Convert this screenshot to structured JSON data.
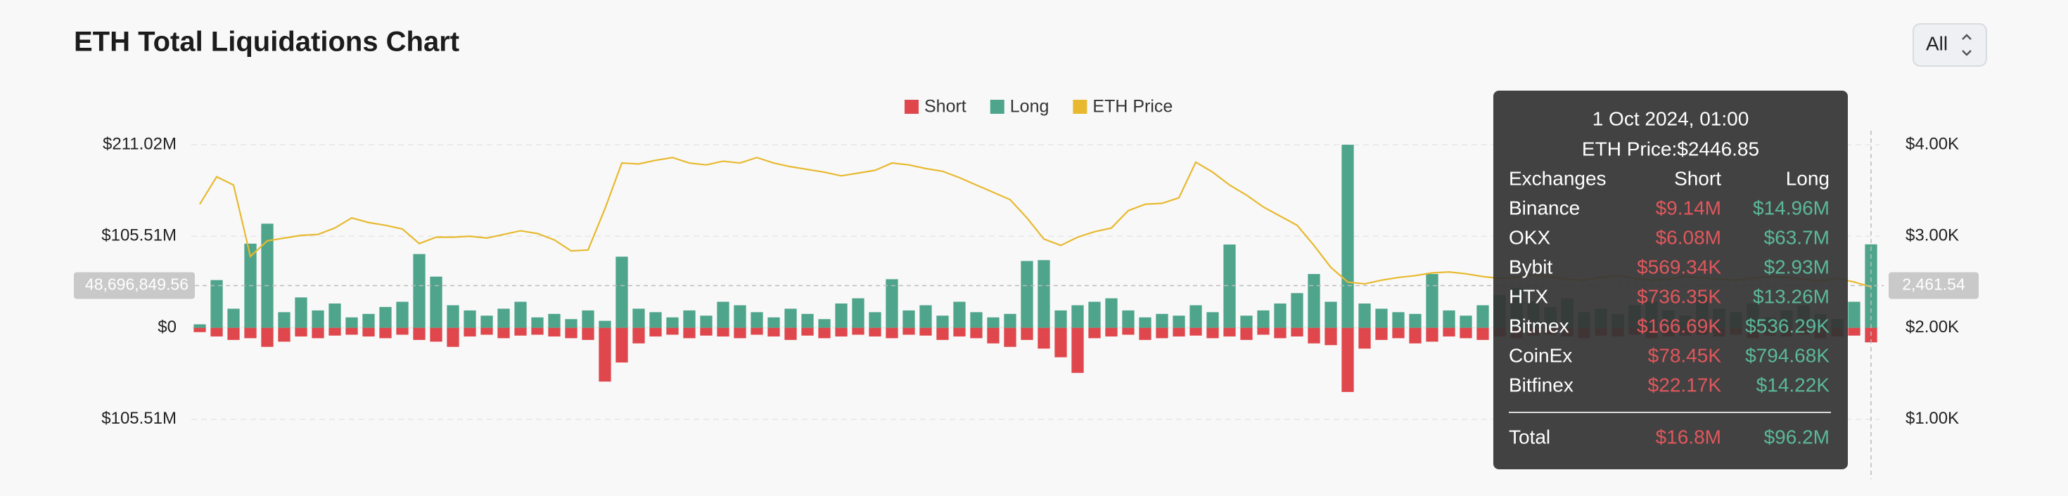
{
  "chart_data": {
    "type": "bar",
    "title": "ETH Total Liquidations Chart",
    "range_button": "All",
    "series": [
      {
        "name": "Short",
        "color": "#e0474c",
        "values": [
          -5,
          -10,
          -14,
          -12,
          -22,
          -16,
          -10,
          -12,
          -9,
          -8,
          -10,
          -12,
          -8,
          -14,
          -16,
          -22,
          -10,
          -8,
          -12,
          -9,
          -8,
          -10,
          -12,
          -14,
          -62,
          -40,
          -18,
          -10,
          -8,
          -12,
          -9,
          -10,
          -12,
          -8,
          -10,
          -14,
          -9,
          -12,
          -10,
          -8,
          -10,
          -12,
          -8,
          -9,
          -14,
          -10,
          -12,
          -18,
          -22,
          -14,
          -24,
          -34,
          -52,
          -12,
          -10,
          -8,
          -14,
          -12,
          -10,
          -9,
          -12,
          -10,
          -14,
          -8,
          -12,
          -10,
          -18,
          -20,
          -74,
          -24,
          -14,
          -12,
          -18,
          -16,
          -10,
          -12,
          -14,
          -10,
          -12,
          -9,
          -8,
          -10,
          -12,
          -9,
          -10,
          -8,
          -12,
          -10,
          -9,
          -8,
          -10,
          -8,
          -12,
          -9,
          -10,
          -8,
          -12,
          -10,
          -9,
          -16.8
        ]
      },
      {
        "name": "Long",
        "color": "#4fa58c",
        "values": [
          4,
          55,
          22,
          97,
          120,
          18,
          35,
          20,
          28,
          12,
          16,
          24,
          30,
          85,
          59,
          26,
          20,
          14,
          22,
          30,
          12,
          16,
          10,
          20,
          8,
          82,
          22,
          18,
          12,
          20,
          14,
          30,
          26,
          18,
          12,
          22,
          16,
          10,
          28,
          34,
          18,
          56,
          20,
          26,
          14,
          30,
          18,
          12,
          16,
          77,
          78,
          20,
          26,
          30,
          34,
          20,
          12,
          16,
          14,
          26,
          18,
          96,
          14,
          20,
          28,
          40,
          62,
          30,
          211,
          28,
          22,
          18,
          16,
          62,
          20,
          14,
          26,
          38,
          46,
          30,
          24,
          34,
          18,
          22,
          16,
          26,
          30,
          20,
          14,
          36,
          22,
          18,
          28,
          12,
          20,
          26,
          16,
          10,
          30,
          96.2
        ]
      },
      {
        "name": "ETH Price",
        "color": "#e8b92f",
        "axis": "y2",
        "values": [
          3350,
          3650,
          3560,
          2780,
          2950,
          2980,
          3010,
          3020,
          3090,
          3200,
          3150,
          3120,
          3080,
          2920,
          2990,
          2990,
          3000,
          2980,
          3020,
          3060,
          3030,
          2960,
          2840,
          2850,
          3300,
          3800,
          3790,
          3830,
          3860,
          3800,
          3780,
          3820,
          3800,
          3860,
          3800,
          3760,
          3730,
          3700,
          3660,
          3690,
          3720,
          3800,
          3780,
          3740,
          3710,
          3640,
          3560,
          3480,
          3400,
          3200,
          2970,
          2900,
          2990,
          3050,
          3090,
          3280,
          3350,
          3360,
          3420,
          3810,
          3700,
          3560,
          3450,
          3320,
          3220,
          3120,
          2900,
          2660,
          2500,
          2480,
          2520,
          2550,
          2570,
          2600,
          2610,
          2590,
          2560,
          2540,
          2550,
          2580,
          2560,
          2530,
          2520,
          2550,
          2570,
          2540,
          2520,
          2530,
          2560,
          2550,
          2530,
          2520,
          2540,
          2560,
          2550,
          2530,
          2510,
          2540,
          2500,
          2446.85
        ]
      }
    ],
    "ylim": [
      -158.265,
      211.02
    ],
    "yticks": [
      {
        "value": 211.02,
        "label": "$211.02M"
      },
      {
        "value": 105.51,
        "label": "$105.51M"
      },
      {
        "value": 0,
        "label": "$0"
      },
      {
        "value": -105.51,
        "label": "$105.51M"
      }
    ],
    "y2lim": [
      500,
      4000
    ],
    "y2ticks": [
      {
        "value": 4000,
        "label": "$4.00K"
      },
      {
        "value": 3000,
        "label": "$3.00K"
      },
      {
        "value": 2000,
        "label": "$2.00K"
      },
      {
        "value": 1000,
        "label": "$1.00K"
      }
    ],
    "grid": true,
    "crosshair": {
      "index": 99,
      "y": {
        "value": 48.69684956,
        "label": "48,696,849.56"
      },
      "y2": {
        "value": 2461.54,
        "label": "2,461.54"
      }
    },
    "tooltip": {
      "title": "1 Oct 2024, 01:00",
      "price": "ETH Price:$2446.85",
      "headers": [
        "Exchanges",
        "Short",
        "Long"
      ],
      "rows": [
        [
          "Binance",
          "$9.14M",
          "$14.96M"
        ],
        [
          "OKX",
          "$6.08M",
          "$63.7M"
        ],
        [
          "Bybit",
          "$569.34K",
          "$2.93M"
        ],
        [
          "HTX",
          "$736.35K",
          "$13.26M"
        ],
        [
          "Bitmex",
          "$166.69K",
          "$536.29K"
        ],
        [
          "CoinEx",
          "$78.45K",
          "$794.68K"
        ],
        [
          "Bitfinex",
          "$22.17K",
          "$14.22K"
        ]
      ],
      "total": [
        "Total",
        "$16.8M",
        "$96.2M"
      ]
    }
  }
}
